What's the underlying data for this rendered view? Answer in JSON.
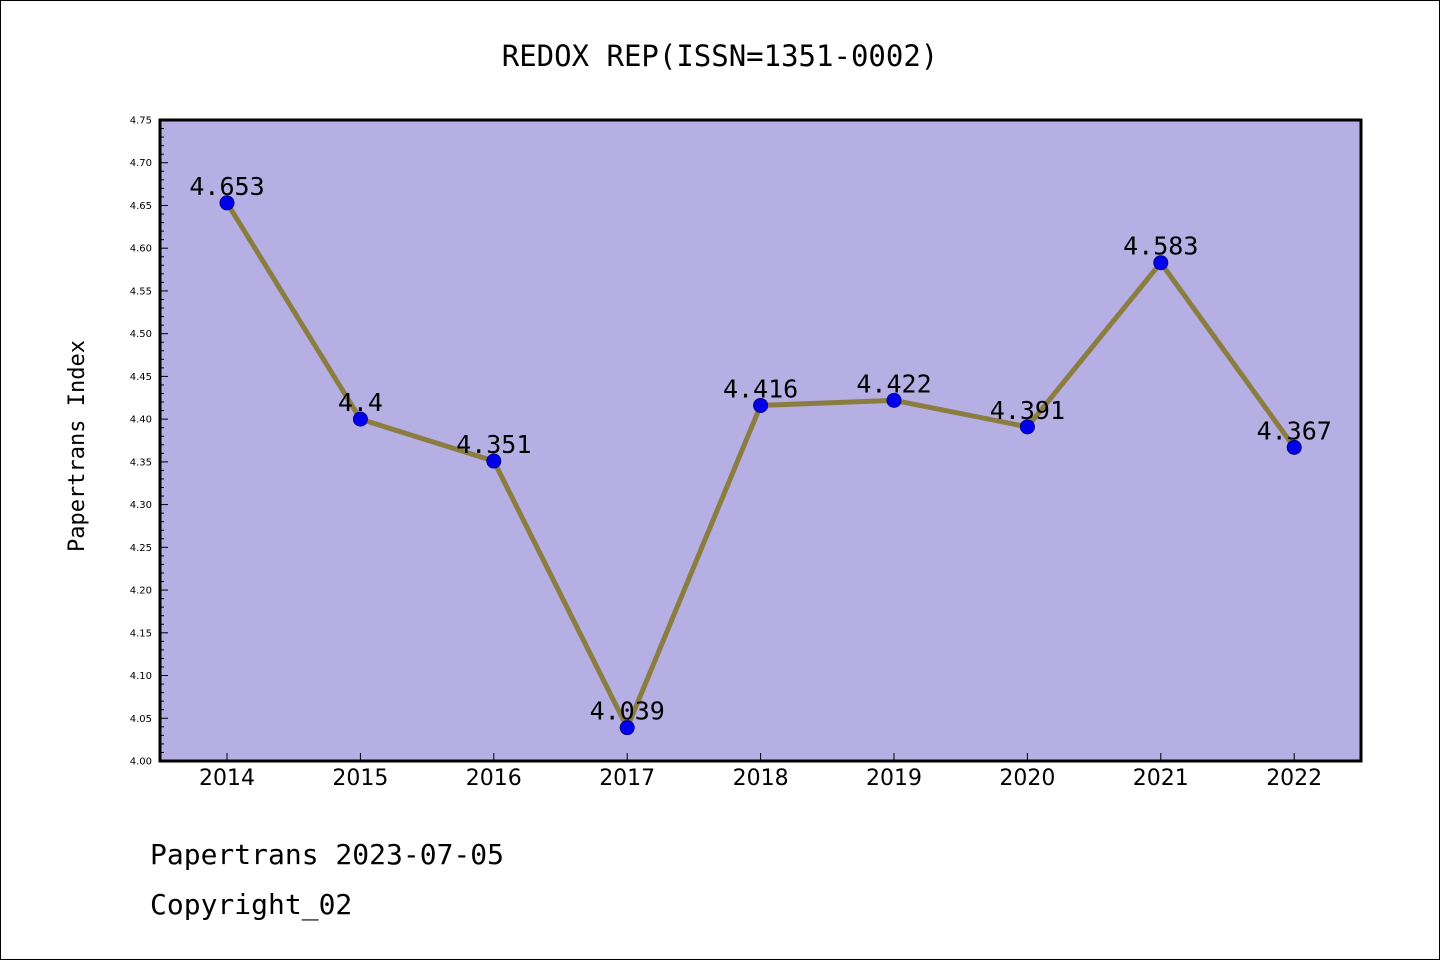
{
  "chart_data": {
    "type": "line",
    "title": "REDOX REP(ISSN=1351-0002)",
    "ylabel": "Papertrans Index",
    "xlabel": "",
    "categories": [
      "2014",
      "2015",
      "2016",
      "2017",
      "2018",
      "2019",
      "2020",
      "2021",
      "2022"
    ],
    "values": [
      4.653,
      4.4,
      4.351,
      4.039,
      4.416,
      4.422,
      4.391,
      4.583,
      4.367
    ],
    "data_labels": [
      "4.653",
      "4.4",
      "4.351",
      "4.039",
      "4.416",
      "4.422",
      "4.391",
      "4.583",
      "4.367"
    ],
    "ylim": [
      4.0,
      4.75
    ],
    "yticks": [
      "4.00",
      "4.05",
      "4.10",
      "4.15",
      "4.20",
      "4.25",
      "4.30",
      "4.35",
      "4.40",
      "4.45",
      "4.50",
      "4.55",
      "4.60",
      "4.65",
      "4.70",
      "4.75"
    ],
    "grid": false,
    "legend": "none",
    "colors": {
      "plot_background": "#b5afe3",
      "line": "#8b7d3f",
      "marker": "#0000ee",
      "marker_edge": "#00008b"
    }
  },
  "footer": {
    "line1": "Papertrans 2023-07-05",
    "line2": "Copyright_02"
  }
}
